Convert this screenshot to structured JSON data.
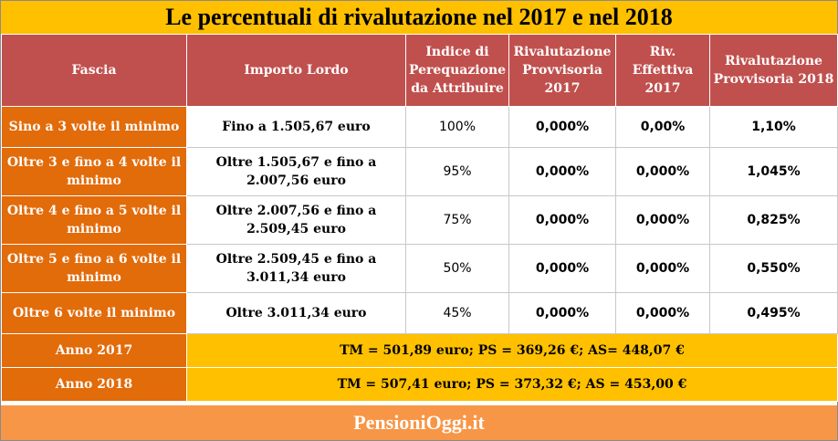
{
  "title": "Le percentuali di rivalutazione nel 2017 e nel 2018",
  "columns": [
    "Fascia",
    "Importo Lordo",
    "Indice di Perequazione da Attribuire",
    "Rivalutazione Provvisoria 2017",
    "Riv. Effettiva 2017",
    "Rivalutazione Provvisoria 2018"
  ],
  "rows": [
    {
      "fascia": "Sino a 3 volte il minimo",
      "importo": "Fino a 1.505,67 euro",
      "indice": "100%",
      "prov2017": "0,000%",
      "eff2017": "0,00%",
      "prov2018": "1,10%"
    },
    {
      "fascia": "Oltre 3 e fino a 4 volte il minimo",
      "importo": "Oltre 1.505,67 e fino a 2.007,56 euro",
      "indice": "95%",
      "prov2017": "0,000%",
      "eff2017": "0,000%",
      "prov2018": "1,045%"
    },
    {
      "fascia": "Oltre 4 e fino a 5 volte il minimo",
      "importo": "Oltre 2.007,56 e fino a 2.509,45 euro",
      "indice": "75%",
      "prov2017": "0,000%",
      "eff2017": "0,000%",
      "prov2018": "0,825%"
    },
    {
      "fascia": "Oltre 5 e fino a 6 volte il minimo",
      "importo": "Oltre 2.509,45 e fino a 3.011,34 euro",
      "indice": "50%",
      "prov2017": "0,000%",
      "eff2017": "0,000%",
      "prov2018": "0,550%"
    },
    {
      "fascia": "Oltre 6 volte il minimo",
      "importo": "Oltre 3.011,34 euro",
      "indice": "45%",
      "prov2017": "0,000%",
      "eff2017": "0,000%",
      "prov2018": "0,495%"
    }
  ],
  "years": [
    {
      "label": "Anno 2017",
      "value": "TM = 501,89 euro; PS = 369,26 €; AS= 448,07 €"
    },
    {
      "label": "Anno 2018",
      "value": "TM = 507,41 euro; PS = 373,32 €; AS = 453,00 €"
    }
  ],
  "footer": "PensioniOggi.it",
  "colors": {
    "title_bg": "#ffc000",
    "header_bg": "#c0504d",
    "fascia_bg": "#e26b0a",
    "footer_bg": "#f79646"
  }
}
